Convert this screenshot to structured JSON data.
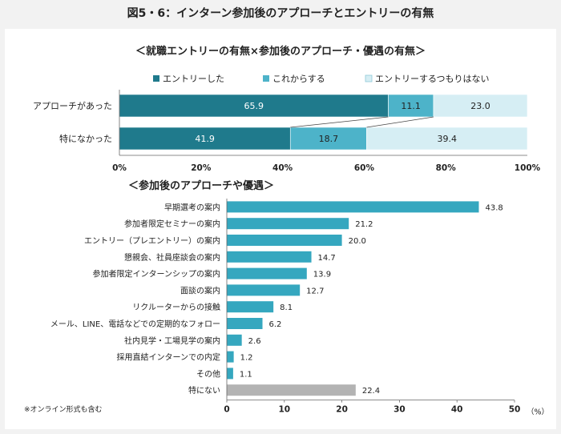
{
  "page_title": "図5・6：インターン参加後のアプローチとエントリーの有無",
  "colors": {
    "entry": "#1f7a8c",
    "consider": "#4db3c9",
    "no_intent": "#d6eef4",
    "bar2": "#35a7bf",
    "none_bar": "#b3b3b3"
  },
  "chart_data": [
    {
      "type": "bar",
      "stacked": true,
      "orientation": "horizontal",
      "title": "＜就職エントリーの有無×参加後のアプローチ・優遇の有無＞",
      "categories": [
        "アプローチがあった",
        "特になかった"
      ],
      "series": [
        {
          "name": "エントリーした",
          "values": [
            65.9,
            41.9
          ]
        },
        {
          "name": "これからする",
          "values": [
            11.1,
            18.7
          ]
        },
        {
          "name": "エントリーするつもりはない",
          "values": [
            23.0,
            39.4
          ]
        }
      ],
      "xlim": [
        0,
        100
      ],
      "xticks": [
        "0%",
        "20%",
        "40%",
        "60%",
        "80%",
        "100%"
      ],
      "legend": "top"
    },
    {
      "type": "bar",
      "orientation": "horizontal",
      "title": "＜参加後のアプローチや優遇＞",
      "categories": [
        "早期選考の案内",
        "参加者限定セミナーの案内",
        "エントリー（プレエントリー）の案内",
        "懇親会、社員座談会の案内",
        "参加者限定インターンシップの案内",
        "面談の案内",
        "リクルーターからの接触",
        "メール、LINE、電話などでの定期的なフォロー",
        "社内見学・工場見学の案内",
        "採用直結インターンでの内定",
        "その他",
        "特にない"
      ],
      "values": [
        43.8,
        21.2,
        20.0,
        14.7,
        13.9,
        12.7,
        8.1,
        6.2,
        2.6,
        1.2,
        1.1,
        22.4
      ],
      "value_labels": [
        "43.8",
        "21.2",
        "20.0",
        "14.7",
        "13.9",
        "12.7",
        "8.1",
        "6.2",
        "2.6",
        "1.2",
        "1.1",
        "22.4"
      ],
      "xlim": [
        0,
        50
      ],
      "xticks": [
        "0",
        "10",
        "20",
        "30",
        "40",
        "50"
      ],
      "unit_label": "（%）"
    }
  ],
  "footnote": "※オンライン形式も含む"
}
